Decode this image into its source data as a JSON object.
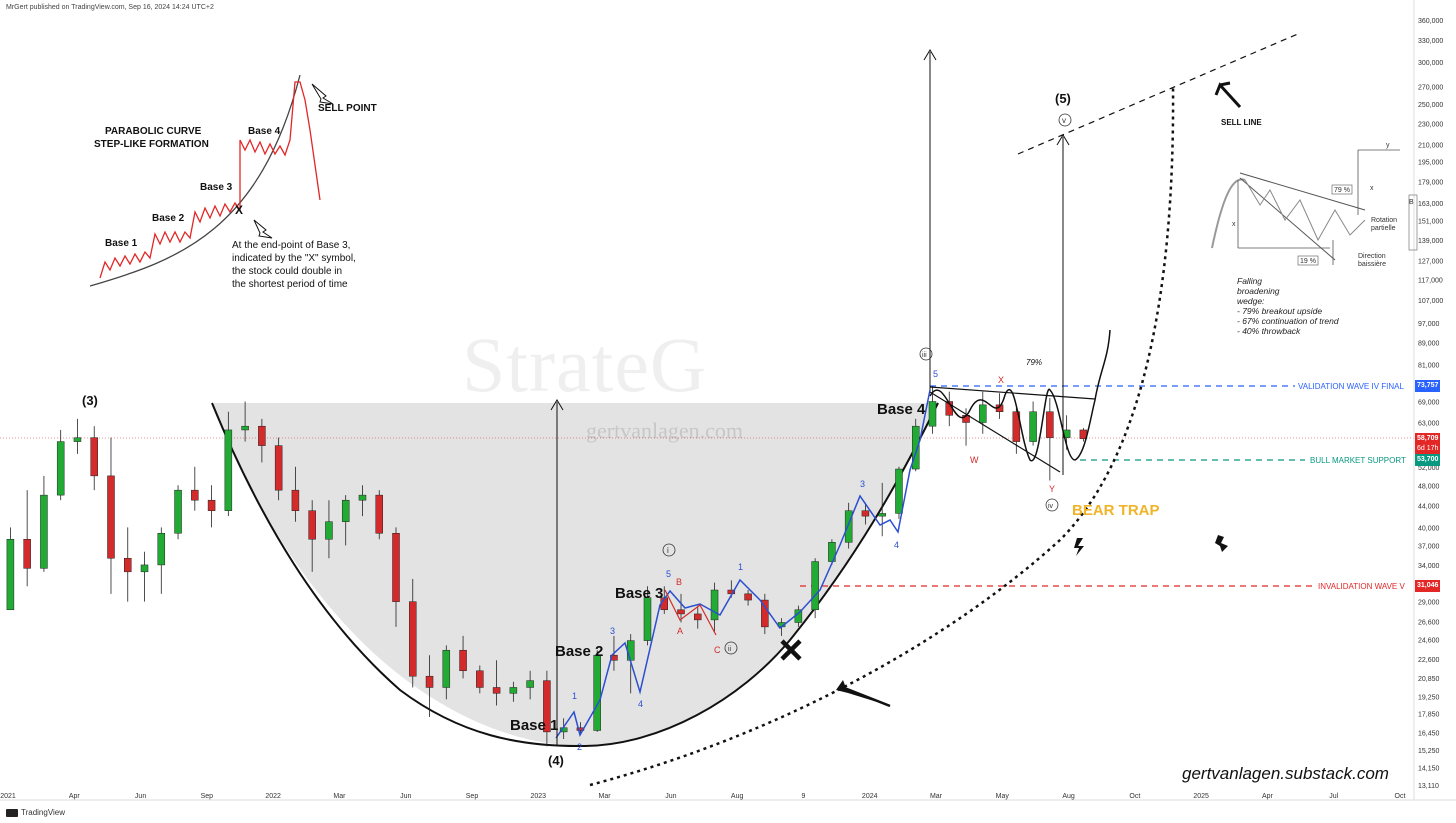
{
  "header": "MrGert published on TradingView.com, Sep 16, 2024 14:24 UTC+2",
  "footer_brand": "TradingView",
  "watermark": {
    "main": "StrateG",
    "sub": "gertvanlagen.com"
  },
  "website": "gertvanlagen.substack.com",
  "colors": {
    "up": "#22ab34",
    "down": "#d32b2b",
    "wave_blue": "#2a4fd1",
    "wave_red": "#d32b2b",
    "bear_trap": "#f0b429",
    "validation": "#2962ff",
    "support": "#089981",
    "invalidation": "#e32626"
  },
  "chart_data": {
    "type": "candlestick",
    "price_scale": "log",
    "y_ticks": [
      "360,000",
      "330,000",
      "300,000",
      "270,000",
      "250,000",
      "230,000",
      "210,000",
      "195,000",
      "179,000",
      "163,000",
      "151,000",
      "139,000",
      "127,000",
      "117,000",
      "107,000",
      "97,000",
      "89,000",
      "81,000",
      "75,000",
      "69,000",
      "63,000",
      "58,000",
      "52,000",
      "48,000",
      "44,000",
      "40,000",
      "37,000",
      "34,000",
      "31,000",
      "29,000",
      "26,600",
      "24,600",
      "22,600",
      "20,850",
      "19,250",
      "17,850",
      "16,450",
      "15,250",
      "14,150",
      "13,110"
    ],
    "x_ticks": [
      "2021",
      "Apr",
      "Jun",
      "Sep",
      "2022",
      "Mar",
      "Jun",
      "Sep",
      "2023",
      "Mar",
      "Jun",
      "Aug",
      "9",
      "2024",
      "Mar",
      "May",
      "Aug",
      "Oct",
      "2025",
      "Apr",
      "Jul",
      "Oct"
    ],
    "levels": [
      {
        "name": "VALIDATION WAVE IV FINAL",
        "value": 73757,
        "label": "73,757"
      },
      {
        "name": "BULL MARKET SUPPORT",
        "value": 53700,
        "label": "53,700"
      },
      {
        "name": "INVALIDATION WAVE V",
        "value": 31046,
        "label": "31,046"
      }
    ],
    "last_price": {
      "label": "58,709",
      "countdown": "6d 17h"
    },
    "candles": [
      [
        "2021-01-04",
        28000,
        40000,
        28000,
        38000
      ],
      [
        "2021-01-25",
        38000,
        47000,
        31000,
        33500
      ],
      [
        "2021-02-15",
        33500,
        50000,
        33000,
        46000
      ],
      [
        "2021-03-08",
        46000,
        61000,
        45000,
        58000
      ],
      [
        "2021-03-29",
        58000,
        64000,
        55000,
        59000
      ],
      [
        "2021-04-19",
        59000,
        62000,
        47000,
        50000
      ],
      [
        "2021-05-10",
        50000,
        59000,
        30000,
        35000
      ],
      [
        "2021-05-31",
        35000,
        40000,
        29000,
        33000
      ],
      [
        "2021-06-21",
        33000,
        36000,
        29000,
        34000
      ],
      [
        "2021-07-12",
        34000,
        40000,
        30000,
        39000
      ],
      [
        "2021-08-02",
        39000,
        48000,
        38000,
        47000
      ],
      [
        "2021-08-23",
        47000,
        52000,
        43000,
        45000
      ],
      [
        "2021-09-13",
        45000,
        48000,
        40000,
        43000
      ],
      [
        "2021-10-04",
        43000,
        66000,
        42000,
        61000
      ],
      [
        "2021-10-25",
        61000,
        69000,
        58000,
        62000
      ],
      [
        "2021-11-15",
        62000,
        64000,
        53000,
        57000
      ],
      [
        "2021-12-06",
        57000,
        59000,
        45000,
        47000
      ],
      [
        "2021-12-27",
        47000,
        52000,
        41000,
        43000
      ],
      [
        "2022-01-17",
        43000,
        45000,
        33000,
        38000
      ],
      [
        "2022-02-07",
        38000,
        45000,
        35000,
        41000
      ],
      [
        "2022-02-28",
        41000,
        46000,
        37000,
        45000
      ],
      [
        "2022-03-21",
        45000,
        48000,
        42000,
        46000
      ],
      [
        "2022-04-11",
        46000,
        47000,
        38000,
        39000
      ],
      [
        "2022-05-02",
        39000,
        40000,
        26000,
        29000
      ],
      [
        "2022-05-23",
        29000,
        32000,
        20000,
        21000
      ],
      [
        "2022-06-13",
        21000,
        23000,
        17600,
        20000
      ],
      [
        "2022-07-04",
        20000,
        24000,
        19000,
        23500
      ],
      [
        "2022-07-25",
        23500,
        25000,
        20800,
        21500
      ],
      [
        "2022-08-15",
        21500,
        22000,
        19500,
        20000
      ],
      [
        "2022-09-05",
        20000,
        22500,
        18500,
        19500
      ],
      [
        "2022-09-26",
        19500,
        20500,
        18800,
        20000
      ],
      [
        "2022-10-17",
        20000,
        21500,
        19000,
        20600
      ],
      [
        "2022-11-07",
        20600,
        21500,
        15500,
        16500
      ],
      [
        "2022-11-28",
        16500,
        17500,
        16000,
        16800
      ],
      [
        "2022-12-19",
        16800,
        17200,
        16300,
        16600
      ],
      [
        "2023-01-09",
        16600,
        23500,
        16500,
        23000
      ],
      [
        "2023-01-30",
        23000,
        25000,
        21500,
        22500
      ],
      [
        "2023-02-20",
        22500,
        25200,
        19500,
        24500
      ],
      [
        "2023-03-13",
        24500,
        31000,
        24000,
        29500
      ],
      [
        "2023-04-03",
        29500,
        31000,
        27500,
        28000
      ],
      [
        "2023-04-24",
        28000,
        30000,
        26500,
        27500
      ],
      [
        "2023-05-15",
        27500,
        28500,
        25800,
        26800
      ],
      [
        "2023-06-05",
        26800,
        31500,
        25500,
        30500
      ],
      [
        "2023-06-26",
        30500,
        31800,
        29500,
        30000
      ],
      [
        "2023-07-17",
        30000,
        30500,
        28500,
        29200
      ],
      [
        "2023-08-07",
        29200,
        30000,
        25200,
        26000
      ],
      [
        "2023-08-28",
        26000,
        27000,
        25000,
        26500
      ],
      [
        "2023-09-18",
        26500,
        28500,
        26000,
        28000
      ],
      [
        "2023-10-09",
        28000,
        35000,
        27000,
        34500
      ],
      [
        "2023-10-30",
        34500,
        38000,
        34000,
        37500
      ],
      [
        "2023-11-20",
        37500,
        44500,
        36500,
        43000
      ],
      [
        "2023-12-11",
        43000,
        44500,
        40500,
        42000
      ],
      [
        "2024-01-01",
        42000,
        48500,
        38500,
        42500
      ],
      [
        "2024-01-22",
        42500,
        52000,
        41500,
        51500
      ],
      [
        "2024-02-12",
        51500,
        64000,
        51000,
        62000
      ],
      [
        "2024-03-04",
        62000,
        73800,
        60000,
        69000
      ],
      [
        "2024-03-25",
        69000,
        72000,
        62000,
        65000
      ],
      [
        "2024-04-15",
        65000,
        67000,
        57000,
        63000
      ],
      [
        "2024-05-06",
        63000,
        72000,
        60000,
        68000
      ],
      [
        "2024-05-27",
        68000,
        71500,
        64000,
        66000
      ],
      [
        "2024-06-17",
        66000,
        67000,
        55000,
        58000
      ],
      [
        "2024-07-08",
        58000,
        69000,
        57000,
        66000
      ],
      [
        "2024-07-29",
        66000,
        70000,
        49000,
        59000
      ],
      [
        "2024-08-19",
        59000,
        65000,
        56000,
        61000
      ],
      [
        "2024-09-09",
        61000,
        61500,
        58000,
        58709
      ]
    ]
  },
  "annotations": {
    "wave_3": "(3)",
    "wave_4": "(4)",
    "wave_5": "(5)",
    "base1": "Base 1",
    "base2": "Base 2",
    "base3": "Base 3",
    "base4": "Base 4",
    "sell_line": "SELL LINE",
    "bear_trap": "BEAR TRAP",
    "pct_79": "79%",
    "circled": {
      "i": "i",
      "ii": "ii",
      "iii": "iii",
      "iv": "iv",
      "v": "v"
    },
    "blue_counts": {
      "c1a": "1",
      "c2a": "2",
      "c3a": "3",
      "c4a": "4",
      "c5a": "5",
      "c1b": "1",
      "c3b": "3",
      "c4b": "4",
      "c5b": "5"
    },
    "red_counts": {
      "B": "B",
      "A": "A",
      "C": "C",
      "W": "W",
      "X": "X",
      "Y": "Y"
    }
  },
  "inset_parabolic": {
    "title_line1": "PARABOLIC CURVE",
    "title_line2": "STEP-LIKE FORMATION",
    "base1": "Base 1",
    "base2": "Base 2",
    "base3": "Base 3",
    "base4": "Base 4",
    "sell_point": "SELL POINT",
    "x_mark": "X",
    "note_line1": "At the end-point of Base 3,",
    "note_line2": "indicated by the \"X\" symbol,",
    "note_line3": "the stock could double in",
    "note_line4": "the shortest period of time"
  },
  "inset_wedge": {
    "pct_top": "79 %",
    "pct_bottom": "19 %",
    "label_rotation_1": "Rotation",
    "label_rotation_2": "partielle",
    "label_direction_1": "Direction",
    "label_direction_2": "baissière",
    "label_x": "x",
    "label_y": "y",
    "label_b": "B",
    "note": [
      "Falling",
      "broadening",
      "wedge:",
      "- 79% breakout upside",
      "- 67% continuation of trend",
      "- 40% throwback"
    ]
  }
}
